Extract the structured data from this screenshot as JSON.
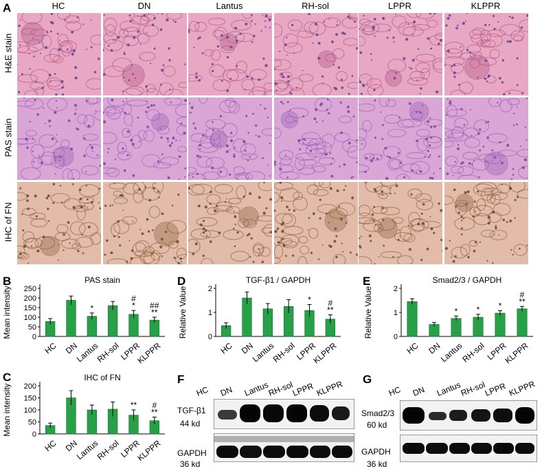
{
  "panel_letters": {
    "a": "A",
    "b": "B",
    "c": "C",
    "d": "D",
    "e": "E",
    "f": "F",
    "g": "G"
  },
  "histology": {
    "columns": [
      "HC",
      "DN",
      "Lantus",
      "RH-sol",
      "LPPR",
      "KLPPR"
    ],
    "rows": [
      "H&E stain",
      "PAS stain",
      "IHC of FN"
    ],
    "row_colors": [
      "#e8a8c4",
      "#d9a6d6",
      "#e2bca8"
    ]
  },
  "colors": {
    "bar": "#27a047",
    "bar_stroke": "#0f6b2a",
    "error": "#000000"
  },
  "chart_data": [
    {
      "id": "B",
      "type": "bar",
      "title": "PAS stain",
      "ylabel": "Mean intensity",
      "xlabel": "",
      "categories": [
        "HC",
        "DN",
        "Lantus",
        "RH-sol",
        "LPPR",
        "KLPPR"
      ],
      "values": [
        78,
        188,
        105,
        160,
        115,
        85
      ],
      "errors": [
        15,
        22,
        17,
        22,
        20,
        15
      ],
      "sig": [
        "",
        "",
        "*",
        "",
        "#\n*",
        "##\n**"
      ],
      "ylim": [
        0,
        250
      ],
      "yticks": [
        "0",
        "50",
        "100",
        "150",
        "200",
        "250"
      ]
    },
    {
      "id": "C",
      "type": "bar",
      "title": "IHC of FN",
      "ylabel": "Mean intensity",
      "xlabel": "",
      "categories": [
        "HC",
        "DN",
        "Lantus",
        "RH-sol",
        "LPPR",
        "KLPPR"
      ],
      "values": [
        35,
        150,
        100,
        103,
        78,
        55
      ],
      "errors": [
        10,
        30,
        20,
        30,
        22,
        15
      ],
      "sig": [
        "",
        "",
        "",
        "",
        "**",
        "#\n**"
      ],
      "ylim": [
        0,
        200
      ],
      "yticks": [
        "0",
        "50",
        "100",
        "150",
        "200"
      ]
    },
    {
      "id": "D",
      "type": "bar",
      "title": "TGF-β1 / GAPDH",
      "ylabel": "Relative Value",
      "xlabel": "",
      "categories": [
        "HC",
        "DN",
        "Lantus",
        "RH-sol",
        "LPPR",
        "KLPPR"
      ],
      "values": [
        0.45,
        1.6,
        1.15,
        1.25,
        1.08,
        0.72
      ],
      "errors": [
        0.12,
        0.25,
        0.22,
        0.28,
        0.25,
        0.18
      ],
      "sig": [
        "",
        "",
        "",
        "",
        "*",
        "#\n**"
      ],
      "ylim": [
        0,
        2
      ],
      "yticks": [
        "0",
        "1",
        "2"
      ]
    },
    {
      "id": "E",
      "type": "bar",
      "title": "Smad2/3  / GAPDH",
      "ylabel": "Relative Value",
      "xlabel": "",
      "categories": [
        "HC",
        "DN",
        "Lantus",
        "RH-sol",
        "LPPR",
        "KLPPR"
      ],
      "values": [
        1.45,
        0.5,
        0.75,
        0.8,
        0.97,
        1.15
      ],
      "errors": [
        0.12,
        0.08,
        0.1,
        0.12,
        0.1,
        0.1
      ],
      "sig": [
        "",
        "",
        "*",
        "*",
        "*",
        "#\n**"
      ],
      "ylim": [
        0,
        2
      ],
      "yticks": [
        "0",
        "1",
        "2"
      ]
    }
  ],
  "blot_f": {
    "lanes": [
      "HC",
      "DN",
      "Lantus",
      "RH-sol",
      "LPPR",
      "KLPPR"
    ],
    "protein1": "TGF-β1",
    "size1": "44 kd",
    "protein2": "GAPDH",
    "size2": "36 kd"
  },
  "blot_g": {
    "lanes": [
      "HC",
      "DN",
      "Lantus",
      "RH-sol",
      "LPPR",
      "KLPPR"
    ],
    "protein1": "Smad2/3",
    "size1": "60 kd",
    "protein2": "GAPDH",
    "size2": "36 kd"
  }
}
